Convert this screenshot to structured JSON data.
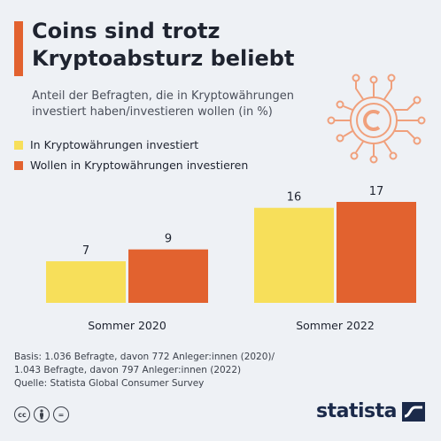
{
  "header": {
    "title_line1": "Coins sind trotz",
    "title_line2": "Kryptoabsturz beliebt",
    "subtitle_line1": "Anteil der Befragten, die in Kryptowährungen",
    "subtitle_line2": "investiert haben/investieren wollen (in %)"
  },
  "colors": {
    "accent": "#e2622f",
    "series1": "#f7df5a",
    "series2": "#e2622f",
    "background": "#eef1f5",
    "icon": "#f0a07c"
  },
  "icons": {
    "coin": "crypto-coin-circuit-icon",
    "cc": "creative-commons-icon",
    "by": "attribution-person-icon",
    "nd": "no-derivatives-icon"
  },
  "chart_data": {
    "type": "bar",
    "categories": [
      "Sommer 2020",
      "Sommer 2022"
    ],
    "series": [
      {
        "name": "In Kryptowährungen investiert",
        "values": [
          7,
          16
        ]
      },
      {
        "name": "Wollen in Kryptowährungen investieren",
        "values": [
          9,
          17
        ]
      }
    ],
    "ylim": [
      0,
      17
    ],
    "grid": false,
    "legend_position": "top-left"
  },
  "footer": {
    "line1": "Basis: 1.036 Befragte, davon 772 Anleger:innen (2020)/",
    "line2": "1.043 Befragte, davon 797 Anleger:innen (2022)",
    "line3": "Quelle: Statista Global Consumer Survey"
  },
  "license": {
    "cc": "cc",
    "nd": "="
  },
  "brand": {
    "name": "statista"
  }
}
